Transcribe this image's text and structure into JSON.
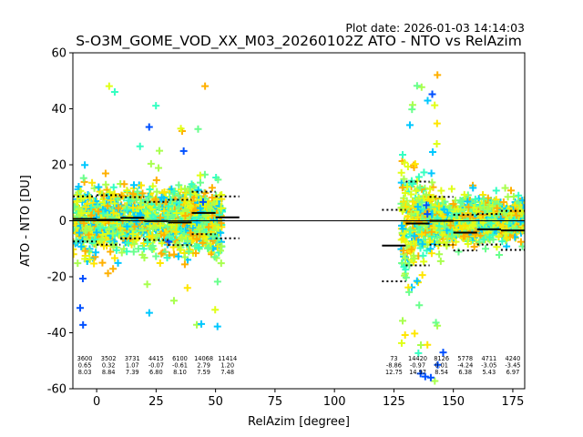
{
  "plot_date": "Plot date: 2026-01-03 14:14:03",
  "chart_data": {
    "type": "scatter",
    "title": "S-O3M_GOME_VOD_XX_M03_20260102Z ATO - NTO vs RelAzim",
    "xlabel": "RelAzim [degree]",
    "ylabel": "ATO - NTO [DU]",
    "xlim": [
      -10,
      180
    ],
    "ylim": [
      -60,
      60
    ],
    "xticks": [
      0,
      25,
      50,
      75,
      100,
      125,
      150,
      175
    ],
    "yticks": [
      -60,
      -40,
      -20,
      0,
      20,
      40,
      60
    ],
    "zero_line": 0,
    "grid": false,
    "legend": "none",
    "scatter_regions": [
      {
        "x_range": [
          -10,
          53
        ],
        "y_core": [
          -18,
          18
        ],
        "y_extent": [
          -38,
          50
        ]
      },
      {
        "x_range": [
          128,
          180
        ],
        "y_core": [
          -22,
          22
        ],
        "y_extent": [
          -60,
          55
        ]
      }
    ],
    "point_colors": [
      "#00c8ff",
      "#35ffc2",
      "#6aff8d",
      "#a8ff4e",
      "#e0ff17",
      "#ffe600",
      "#ffb000",
      "#0050ff"
    ],
    "bins": [
      {
        "x_range": [
          -10,
          0
        ],
        "n": "3600",
        "mean": 0.65,
        "std": 8.03
      },
      {
        "x_range": [
          0,
          10
        ],
        "n": "3502",
        "mean": 0.32,
        "std": 8.84
      },
      {
        "x_range": [
          10,
          20
        ],
        "n": "3731",
        "mean": 1.07,
        "std": 7.39
      },
      {
        "x_range": [
          20,
          30
        ],
        "n": "4415",
        "mean": -0.07,
        "std": 6.8
      },
      {
        "x_range": [
          30,
          40
        ],
        "n": "6100",
        "mean": -0.61,
        "std": 8.1
      },
      {
        "x_range": [
          40,
          50
        ],
        "n": "14068",
        "mean": 2.79,
        "std": 7.59
      },
      {
        "x_range": [
          50,
          60
        ],
        "n": "11414",
        "mean": 1.2,
        "std": 7.48
      },
      {
        "x_range": [
          120,
          130
        ],
        "n": "73",
        "mean": -8.86,
        "std": 12.75
      },
      {
        "x_range": [
          130,
          140
        ],
        "n": "14420",
        "mean": -0.97,
        "std": 14.97
      },
      {
        "x_range": [
          140,
          150
        ],
        "n": "8126",
        "mean": 0.01,
        "std": 8.54
      },
      {
        "x_range": [
          150,
          160
        ],
        "n": "5778",
        "mean": -4.24,
        "std": 6.38
      },
      {
        "x_range": [
          160,
          170
        ],
        "n": "4711",
        "mean": -3.05,
        "std": 5.43
      },
      {
        "x_range": [
          170,
          180
        ],
        "n": "4240",
        "mean": -3.45,
        "std": 6.97
      }
    ]
  }
}
